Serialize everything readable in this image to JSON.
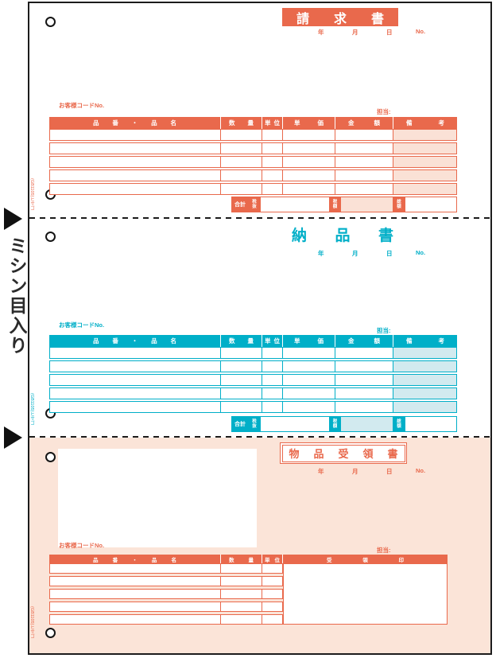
{
  "side": {
    "perforation_label": "ミシン目入り",
    "stamp_code": "(GB1105)ヒサゴ"
  },
  "colors": {
    "invoice_accent": "#E9694C",
    "invoice_shade": "#FAE1D6",
    "delivery_accent": "#00AFC8",
    "delivery_shade": "#D2EAEF",
    "receipt_accent": "#E9694C",
    "receipt_background": "#FBE4D8"
  },
  "common": {
    "date_labels": [
      "年",
      "月",
      "日",
      "No."
    ],
    "customer_code_label": "お客様コードNo.",
    "staff_label": "担当:",
    "totals": {
      "total_label": "合計",
      "tax_excluded_label": "税抜",
      "tax_amount_label": "税額",
      "grand_total_label": "総額"
    }
  },
  "sections": [
    {
      "title": "請求書",
      "columns": [
        "品番・品名",
        "数量",
        "単位",
        "単価",
        "金額",
        "備考"
      ]
    },
    {
      "title": "納品書",
      "columns": [
        "品番・品名",
        "数量",
        "単位",
        "単価",
        "金額",
        "備考"
      ]
    },
    {
      "title": "物品受領書",
      "columns": [
        "品番・品名",
        "数量",
        "単位",
        "受領印"
      ]
    }
  ]
}
